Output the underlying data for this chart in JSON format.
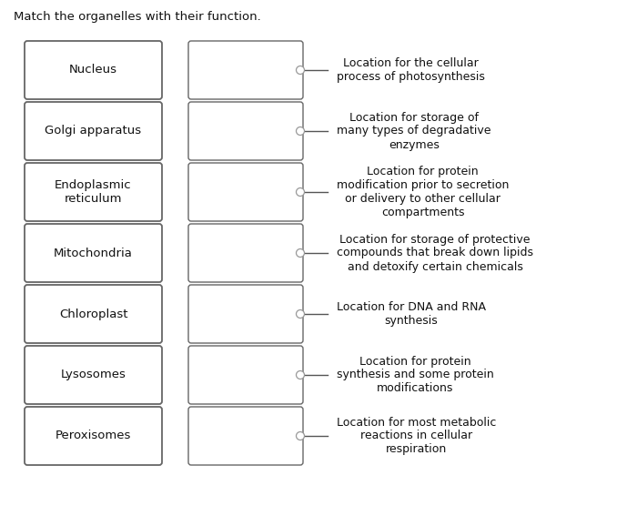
{
  "title": "Match the organelles with their function.",
  "organelles": [
    "Nucleus",
    "Golgi apparatus",
    "Endoplasmic\nreticulum",
    "Mitochondria",
    "Chloroplast",
    "Lysosomes",
    "Peroxisomes"
  ],
  "functions": [
    "Location for the cellular\nprocess of photosynthesis",
    "Location for storage of\nmany types of degradative\nenzymes",
    "Location for protein\nmodification prior to secretion\nor delivery to other cellular\ncompartments",
    "Location for storage of protective\ncompounds that break down lipids\nand detoxify certain chemicals",
    "Location for DNA and RNA\nsynthesis",
    "Location for protein\nsynthesis and some protein\nmodifications",
    "Location for most metabolic\nreactions in cellular\nrespiration"
  ],
  "bg_color": "#ffffff",
  "box_edge_color": "#666666",
  "box_fill_left": "#ffffff",
  "box_fill_right": "#ffffff",
  "line_color": "#555555",
  "dot_color": "#ffffff",
  "dot_edge_color": "#999999",
  "text_color": "#111111",
  "title_fontsize": 9.5,
  "label_fontsize": 9.5,
  "func_fontsize": 9.0
}
